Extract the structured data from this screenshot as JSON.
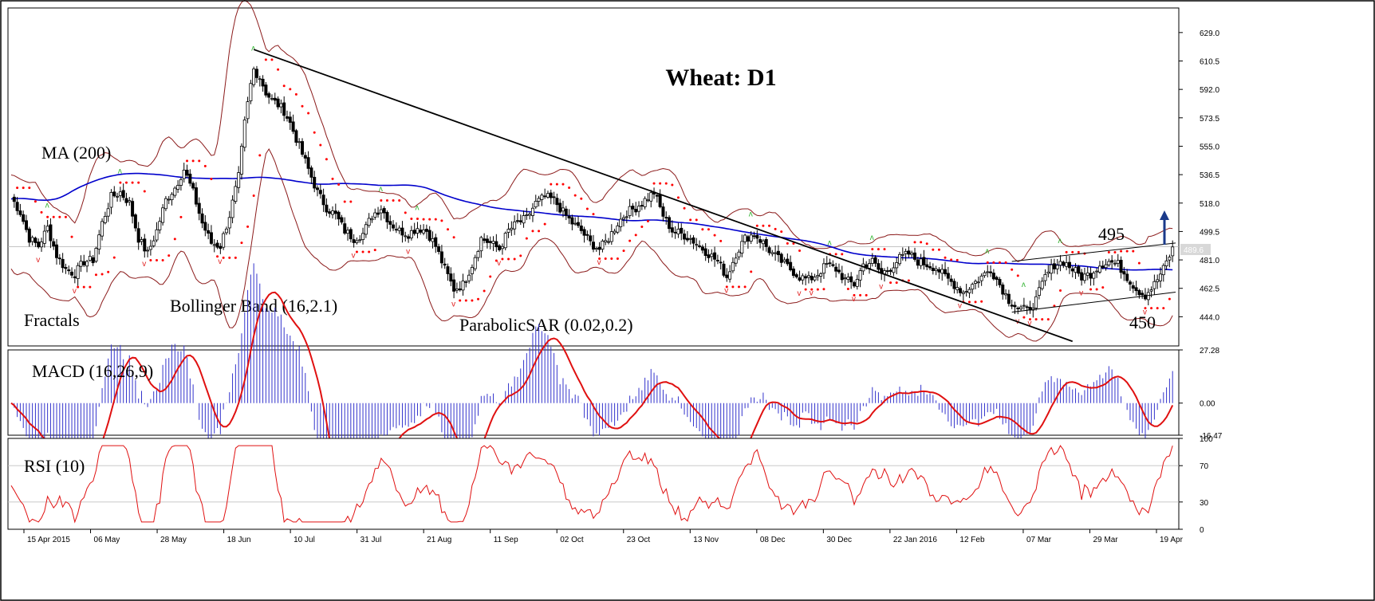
{
  "chart_data": [
    {
      "type": "line",
      "panel": "price",
      "title": "Wheat: D1",
      "instrument": "Wheat",
      "timeframe": "D1",
      "y_ticks": [
        "629.0",
        "610.5",
        "592.0",
        "573.5",
        "555.0",
        "536.5",
        "518.0",
        "499.5",
        "481.0",
        "462.5",
        "444.0"
      ],
      "ylim": [
        425,
        645
      ],
      "current_price": "489.6",
      "x_ticks": [
        "15 Apr 2015",
        "06 May",
        "28 May",
        "18 Jun",
        "10 Jul",
        "31 Jul",
        "21 Aug",
        "11 Sep",
        "02 Oct",
        "23 Oct",
        "13 Nov",
        "08 Dec",
        "30 Dec",
        "22 Jan 2016",
        "12 Feb",
        "07 Mar",
        "29 Mar",
        "19 Apr"
      ],
      "close_series": [
        [
          0,
          522
        ],
        [
          3,
          512
        ],
        [
          6,
          495
        ],
        [
          9,
          490
        ],
        [
          12,
          502
        ],
        [
          15,
          484
        ],
        [
          18,
          475
        ],
        [
          21,
          472
        ],
        [
          24,
          480
        ],
        [
          27,
          481
        ],
        [
          30,
          505
        ],
        [
          33,
          522
        ],
        [
          36,
          525
        ],
        [
          39,
          518
        ],
        [
          42,
          495
        ],
        [
          45,
          485
        ],
        [
          48,
          500
        ],
        [
          51,
          520
        ],
        [
          54,
          528
        ],
        [
          57,
          540
        ],
        [
          60,
          525
        ],
        [
          63,
          505
        ],
        [
          66,
          492
        ],
        [
          69,
          490
        ],
        [
          72,
          510
        ],
        [
          75,
          535
        ],
        [
          77,
          570
        ],
        [
          79,
          595
        ],
        [
          80,
          605
        ],
        [
          82,
          600
        ],
        [
          84,
          590
        ],
        [
          86,
          585
        ],
        [
          88,
          582
        ],
        [
          90,
          578
        ],
        [
          92,
          570
        ],
        [
          95,
          555
        ],
        [
          98,
          540
        ],
        [
          101,
          525
        ],
        [
          104,
          515
        ],
        [
          107,
          510
        ],
        [
          110,
          500
        ],
        [
          113,
          495
        ],
        [
          116,
          498
        ],
        [
          119,
          510
        ],
        [
          122,
          515
        ],
        [
          125,
          505
        ],
        [
          128,
          500
        ],
        [
          131,
          498
        ],
        [
          134,
          502
        ],
        [
          137,
          500
        ],
        [
          140,
          490
        ],
        [
          143,
          475
        ],
        [
          146,
          462
        ],
        [
          149,
          465
        ],
        [
          152,
          478
        ],
        [
          155,
          495
        ],
        [
          158,
          492
        ],
        [
          161,
          488
        ],
        [
          164,
          500
        ],
        [
          167,
          505
        ],
        [
          170,
          508
        ],
        [
          173,
          518
        ],
        [
          176,
          522
        ],
        [
          179,
          520
        ],
        [
          182,
          512
        ],
        [
          185,
          505
        ],
        [
          188,
          500
        ],
        [
          191,
          492
        ],
        [
          194,
          488
        ],
        [
          197,
          495
        ],
        [
          200,
          505
        ],
        [
          203,
          512
        ],
        [
          206,
          515
        ],
        [
          209,
          520
        ],
        [
          212,
          525
        ],
        [
          215,
          510
        ],
        [
          218,
          500
        ],
        [
          221,
          498
        ],
        [
          224,
          495
        ],
        [
          227,
          490
        ],
        [
          230,
          485
        ],
        [
          233,
          480
        ],
        [
          236,
          470
        ],
        [
          239,
          485
        ],
        [
          242,
          495
        ],
        [
          245,
          498
        ],
        [
          248,
          492
        ],
        [
          251,
          485
        ],
        [
          254,
          480
        ],
        [
          257,
          475
        ],
        [
          260,
          470
        ],
        [
          263,
          468
        ],
        [
          266,
          472
        ],
        [
          269,
          478
        ],
        [
          272,
          475
        ],
        [
          275,
          468
        ],
        [
          278,
          465
        ],
        [
          281,
          478
        ],
        [
          284,
          480
        ],
        [
          287,
          472
        ],
        [
          290,
          476
        ],
        [
          293,
          482
        ],
        [
          296,
          485
        ],
        [
          299,
          480
        ],
        [
          302,
          478
        ],
        [
          305,
          476
        ],
        [
          308,
          470
        ],
        [
          311,
          465
        ],
        [
          314,
          460
        ],
        [
          317,
          465
        ],
        [
          320,
          470
        ],
        [
          323,
          475
        ],
        [
          326,
          465
        ],
        [
          329,
          455
        ],
        [
          332,
          450
        ],
        [
          335,
          448
        ],
        [
          338,
          455
        ],
        [
          341,
          470
        ],
        [
          344,
          478
        ],
        [
          347,
          480
        ],
        [
          350,
          475
        ],
        [
          353,
          470
        ],
        [
          356,
          472
        ],
        [
          359,
          478
        ],
        [
          362,
          480
        ],
        [
          365,
          478
        ],
        [
          368,
          470
        ],
        [
          371,
          462
        ],
        [
          374,
          458
        ],
        [
          377,
          465
        ],
        [
          380,
          475
        ],
        [
          383,
          488
        ]
      ]
    },
    {
      "type": "bar",
      "panel": "macd",
      "y_ticks": [
        "27.28",
        "0.00",
        "-16.47"
      ],
      "ylim": [
        -16.47,
        27.28
      ]
    },
    {
      "type": "line",
      "panel": "rsi",
      "y_ticks": [
        "100",
        "70",
        "30",
        "0"
      ],
      "ylim": [
        0,
        100
      ]
    }
  ],
  "labels": {
    "ma": "MA (200)",
    "bollinger": "Bollinger Band (16,2.1)",
    "fractals": "Fractals",
    "sar": "ParabolicSAR (0.02,0.2)",
    "level_high": "495",
    "level_low": "450",
    "macd": "MACD (16,26,9)",
    "rsi": "RSI (10)"
  },
  "colors": {
    "ma": "#0000cc",
    "bollinger": "#8b1a1a",
    "sar": "#ff0000",
    "fractal_up": "#2db22d",
    "fractal_down": "#e02020",
    "macd_hist": "#3333cc",
    "macd_signal": "#e01010",
    "rsi": "#e01010",
    "arrow": "#1a3a8a"
  }
}
